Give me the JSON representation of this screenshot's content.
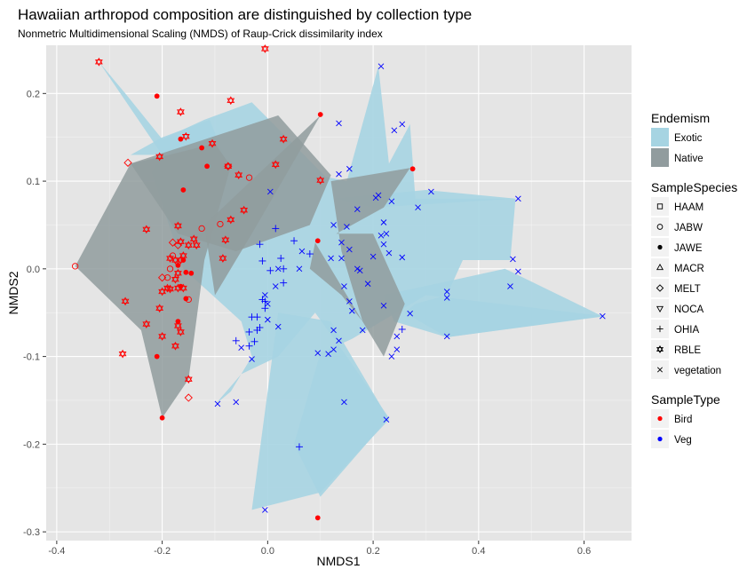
{
  "chart_data": {
    "type": "scatter",
    "title": "Hawaiian arthropod composition are distinguished by collection type",
    "subtitle": "Nonmetric Multidimensional Scaling (NMDS) of Raup-Crick dissimilarity index",
    "xlabel": "NMDS1",
    "ylabel": "NMDS2",
    "xlim": [
      -0.42,
      0.69
    ],
    "ylim": [
      -0.31,
      0.255
    ],
    "x_ticks": [
      -0.4,
      -0.2,
      0.0,
      0.2,
      0.4,
      0.6
    ],
    "x_tick_labels": [
      "-0.4",
      "-0.2",
      "0.0",
      "0.2",
      "0.4",
      "0.6"
    ],
    "y_ticks": [
      -0.3,
      -0.2,
      -0.1,
      0.0,
      0.1,
      0.2
    ],
    "y_tick_labels": [
      "-0.3",
      "-0.2",
      "-0.1",
      "0.0",
      "0.1",
      "0.2"
    ],
    "grid": true,
    "panel_background": "#e5e5e5",
    "legend_position": "right",
    "legends": [
      {
        "title": "Endemism",
        "kind": "fill",
        "entries": [
          {
            "label": "Exotic",
            "color": "#a6d4e2"
          },
          {
            "label": "Native",
            "color": "#919c9e"
          }
        ]
      },
      {
        "title": "SampleSpecies",
        "kind": "shape",
        "entries": [
          {
            "label": "HAAM",
            "shape": "square-open"
          },
          {
            "label": "JABW",
            "shape": "circle-open"
          },
          {
            "label": "JAWE",
            "shape": "circle-filled"
          },
          {
            "label": "MACR",
            "shape": "triangle-up-open"
          },
          {
            "label": "MELT",
            "shape": "diamond-open"
          },
          {
            "label": "NOCA",
            "shape": "triangle-down-open"
          },
          {
            "label": "OHIA",
            "shape": "plus"
          },
          {
            "label": "RBLE",
            "shape": "star-of-david"
          },
          {
            "label": "vegetation",
            "shape": "cross"
          }
        ]
      },
      {
        "title": "SampleType",
        "kind": "color",
        "entries": [
          {
            "label": "Bird",
            "color": "#ff0000"
          },
          {
            "label": "Veg",
            "color": "#0000ff"
          }
        ]
      }
    ],
    "hulls": [
      {
        "endemism": "Exotic",
        "points": [
          [
            -0.32,
            0.236
          ],
          [
            -0.27,
            0.2
          ],
          [
            -0.2,
            0.148
          ],
          [
            -0.12,
            0.17
          ],
          [
            -0.03,
            0.19
          ],
          [
            0.11,
            0.105
          ],
          [
            0.15,
            0.1
          ],
          [
            0.21,
            0.231
          ],
          [
            0.23,
            0.12
          ],
          [
            0.27,
            0.165
          ],
          [
            0.28,
            0.08
          ],
          [
            0.47,
            0.08
          ],
          [
            0.46,
            0.01
          ],
          [
            0.37,
            0.01
          ],
          [
            0.34,
            -0.03
          ],
          [
            0.28,
            -0.04
          ],
          [
            0.26,
            -0.05
          ],
          [
            0.34,
            -0.078
          ],
          [
            0.64,
            -0.054
          ],
          [
            0.3,
            -0.03
          ],
          [
            0.16,
            -0.08
          ],
          [
            0.1,
            -0.096
          ],
          [
            0.05,
            -0.2
          ],
          [
            0.1,
            -0.26
          ],
          [
            0.23,
            -0.17
          ],
          [
            0.15,
            -0.1
          ],
          [
            0.09,
            -0.05
          ],
          [
            0.02,
            -0.1
          ],
          [
            -0.05,
            -0.12
          ],
          [
            -0.1,
            -0.155
          ],
          [
            -0.07,
            -0.14
          ],
          [
            -0.03,
            -0.1
          ],
          [
            -0.05,
            -0.06
          ],
          [
            -0.16,
            -0.0
          ],
          [
            -0.22,
            0.11
          ],
          [
            -0.2,
            0.13
          ]
        ],
        "color": "#a6d4e2"
      },
      {
        "endemism": "Exotic",
        "points": [
          [
            -0.26,
            0.13
          ],
          [
            -0.2,
            0.15
          ],
          [
            -0.11,
            0.17
          ],
          [
            -0.07,
            0.11
          ],
          [
            -0.2,
            0.13
          ]
        ],
        "color": "#a6d4e2"
      },
      {
        "endemism": "Exotic",
        "points": [
          [
            0.3,
            0.09
          ],
          [
            0.47,
            0.08
          ],
          [
            0.2,
            0.07
          ],
          [
            0.13,
            0.08
          ]
        ],
        "color": "#a6d4e2"
      },
      {
        "endemism": "Exotic",
        "points": [
          [
            0.22,
            -0.03
          ],
          [
            0.45,
            0.0
          ],
          [
            0.635,
            -0.054
          ],
          [
            0.34,
            -0.078
          ],
          [
            0.24,
            -0.06
          ]
        ],
        "color": "#a6d4e2"
      },
      {
        "endemism": "Exotic",
        "points": [
          [
            -0.03,
            -0.275
          ],
          [
            0.1,
            -0.255
          ],
          [
            0.23,
            -0.172
          ],
          [
            0.12,
            -0.06
          ],
          [
            0.02,
            -0.05
          ]
        ],
        "color": "#a6d4e2"
      },
      {
        "endemism": "Native",
        "points": [
          [
            -0.365,
            0.003
          ],
          [
            -0.26,
            0.12
          ],
          [
            -0.2,
            0.128
          ],
          [
            -0.1,
            0.143
          ],
          [
            -0.07,
            0.117
          ],
          [
            -0.12,
            0.01
          ],
          [
            -0.15,
            -0.126
          ],
          [
            -0.2,
            -0.17
          ],
          [
            -0.24,
            -0.07
          ]
        ],
        "color": "#919c9e"
      },
      {
        "endemism": "Native",
        "points": [
          [
            -0.26,
            0.12
          ],
          [
            0.02,
            0.175
          ],
          [
            0.12,
            0.107
          ],
          [
            0.08,
            0.05
          ],
          [
            -0.06,
            0.02
          ],
          [
            -0.17,
            0.04
          ]
        ],
        "color": "#919c9e"
      },
      {
        "endemism": "Native",
        "points": [
          [
            -0.12,
            0.05
          ],
          [
            0.1,
            0.175
          ],
          [
            -0.03,
            0.04
          ],
          [
            -0.1,
            -0.03
          ]
        ],
        "color": "#919c9e"
      },
      {
        "endemism": "Native",
        "points": [
          [
            0.12,
            0.1
          ],
          [
            0.27,
            0.115
          ],
          [
            0.22,
            0.07
          ],
          [
            0.13,
            0.04
          ],
          [
            0.2,
            0.04
          ],
          [
            0.26,
            -0.04
          ],
          [
            0.22,
            -0.1
          ],
          [
            0.18,
            -0.06
          ],
          [
            0.14,
            0.02
          ]
        ],
        "color": "#919c9e"
      },
      {
        "endemism": "Native",
        "points": [
          [
            0.09,
            0.03
          ],
          [
            0.18,
            -0.06
          ],
          [
            0.14,
            -0.03
          ],
          [
            0.08,
            0.0
          ]
        ],
        "color": "#919c9e"
      }
    ],
    "series": [
      {
        "species": "JAWE",
        "type": "Bird",
        "shape": "circle-filled",
        "color": "#ff0000",
        "points": [
          [
            -0.21,
            0.197
          ],
          [
            0.1,
            0.176
          ],
          [
            -0.165,
            0.148
          ],
          [
            -0.125,
            0.138
          ],
          [
            -0.115,
            0.117
          ],
          [
            -0.16,
            0.09
          ],
          [
            0.275,
            0.114
          ],
          [
            0.095,
            0.032
          ],
          [
            -0.17,
            0.004
          ],
          [
            -0.16,
            0.01
          ],
          [
            -0.155,
            -0.004
          ],
          [
            -0.165,
            -0.02
          ],
          [
            -0.155,
            -0.034
          ],
          [
            -0.17,
            -0.06
          ],
          [
            -0.21,
            -0.1
          ],
          [
            -0.2,
            -0.17
          ],
          [
            0.095,
            -0.284
          ],
          [
            -0.145,
            -0.005
          ]
        ]
      },
      {
        "species": "JABW",
        "type": "Bird",
        "shape": "circle-open",
        "color": "#ff0000",
        "points": [
          [
            -0.365,
            0.003
          ],
          [
            -0.09,
            0.051
          ],
          [
            -0.125,
            0.046
          ],
          [
            -0.035,
            0.104
          ],
          [
            -0.15,
            -0.035
          ],
          [
            -0.185,
            0.0
          ],
          [
            -0.18,
            0.015
          ],
          [
            -0.19,
            -0.01
          ]
        ]
      },
      {
        "species": "MELT",
        "type": "Bird",
        "shape": "diamond-open",
        "color": "#ff0000",
        "points": [
          [
            -0.265,
            0.121
          ],
          [
            -0.075,
            0.117
          ],
          [
            -0.15,
            -0.147
          ],
          [
            -0.17,
            0.027
          ],
          [
            -0.2,
            -0.01
          ],
          [
            -0.18,
            0.03
          ]
        ]
      },
      {
        "species": "RBLE",
        "type": "Bird",
        "shape": "star-of-david",
        "color": "#ff0000",
        "points": [
          [
            -0.32,
            0.236
          ],
          [
            -0.005,
            0.251
          ],
          [
            -0.07,
            0.192
          ],
          [
            -0.165,
            0.179
          ],
          [
            -0.155,
            0.151
          ],
          [
            -0.105,
            0.143
          ],
          [
            0.03,
            0.148
          ],
          [
            -0.205,
            0.128
          ],
          [
            -0.075,
            0.117
          ],
          [
            -0.055,
            0.107
          ],
          [
            0.015,
            0.119
          ],
          [
            0.1,
            0.101
          ],
          [
            -0.045,
            0.067
          ],
          [
            -0.07,
            0.056
          ],
          [
            -0.23,
            0.045
          ],
          [
            -0.17,
            0.049
          ],
          [
            -0.135,
            0.027
          ],
          [
            -0.14,
            0.034
          ],
          [
            -0.165,
            0.031
          ],
          [
            -0.15,
            0.027
          ],
          [
            -0.16,
            0.015
          ],
          [
            -0.175,
            0.01
          ],
          [
            -0.185,
            0.012
          ],
          [
            -0.165,
            0.01
          ],
          [
            -0.17,
            -0.005
          ],
          [
            -0.175,
            -0.012
          ],
          [
            -0.185,
            -0.023
          ],
          [
            -0.2,
            -0.026
          ],
          [
            -0.17,
            -0.022
          ],
          [
            -0.16,
            -0.022
          ],
          [
            -0.19,
            -0.022
          ],
          [
            -0.27,
            -0.037
          ],
          [
            -0.205,
            -0.045
          ],
          [
            -0.17,
            -0.065
          ],
          [
            -0.165,
            -0.072
          ],
          [
            -0.2,
            -0.077
          ],
          [
            -0.23,
            -0.063
          ],
          [
            -0.175,
            -0.088
          ],
          [
            -0.275,
            -0.097
          ],
          [
            -0.15,
            -0.126
          ],
          [
            -0.085,
            0.012
          ],
          [
            -0.08,
            0.033
          ]
        ]
      },
      {
        "species": "OHIA",
        "type": "Veg",
        "shape": "plus",
        "color": "#0000ff",
        "points": [
          [
            0.015,
            0.046
          ],
          [
            0.05,
            0.032
          ],
          [
            -0.015,
            0.028
          ],
          [
            -0.01,
            0.009
          ],
          [
            0.025,
            0.012
          ],
          [
            0.005,
            -0.002
          ],
          [
            0.03,
            0.0
          ],
          [
            0.08,
            0.017
          ],
          [
            0.03,
            -0.016
          ],
          [
            -0.01,
            -0.035
          ],
          [
            -0.03,
            -0.055
          ],
          [
            -0.005,
            -0.037
          ],
          [
            -0.02,
            -0.07
          ],
          [
            -0.035,
            -0.072
          ],
          [
            -0.06,
            -0.082
          ],
          [
            -0.035,
            -0.088
          ],
          [
            -0.025,
            -0.083
          ],
          [
            -0.02,
            -0.055
          ],
          [
            0.06,
            -0.203
          ],
          [
            -0.015,
            -0.067
          ],
          [
            -0.005,
            -0.045
          ],
          [
            0.255,
            -0.069
          ]
        ]
      },
      {
        "species": "vegetation",
        "type": "Veg",
        "shape": "cross",
        "color": "#0000ff",
        "points": [
          [
            0.215,
            0.231
          ],
          [
            0.135,
            0.166
          ],
          [
            0.255,
            0.165
          ],
          [
            0.24,
            0.158
          ],
          [
            0.135,
            0.108
          ],
          [
            0.155,
            0.114
          ],
          [
            0.205,
            0.081
          ],
          [
            0.21,
            0.084
          ],
          [
            0.235,
            0.077
          ],
          [
            0.31,
            0.088
          ],
          [
            0.475,
            0.08
          ],
          [
            0.285,
            0.07
          ],
          [
            0.17,
            0.068
          ],
          [
            0.125,
            0.05
          ],
          [
            0.22,
            0.053
          ],
          [
            0.215,
            0.038
          ],
          [
            0.225,
            0.04
          ],
          [
            0.15,
            0.048
          ],
          [
            0.14,
            0.03
          ],
          [
            0.22,
            0.028
          ],
          [
            0.155,
            0.022
          ],
          [
            0.23,
            0.018
          ],
          [
            0.14,
            0.012
          ],
          [
            0.12,
            0.012
          ],
          [
            0.2,
            0.014
          ],
          [
            0.255,
            0.013
          ],
          [
            0.17,
            0.0
          ],
          [
            0.175,
            -0.002
          ],
          [
            0.19,
            -0.017
          ],
          [
            0.145,
            -0.02
          ],
          [
            0.155,
            -0.037
          ],
          [
            0.16,
            -0.048
          ],
          [
            0.22,
            -0.042
          ],
          [
            0.27,
            -0.051
          ],
          [
            0.34,
            -0.026
          ],
          [
            0.34,
            -0.033
          ],
          [
            0.465,
            0.011
          ],
          [
            0.475,
            -0.003
          ],
          [
            0.46,
            -0.02
          ],
          [
            0.635,
            -0.054
          ],
          [
            0.125,
            -0.07
          ],
          [
            0.18,
            -0.07
          ],
          [
            0.135,
            -0.082
          ],
          [
            0.245,
            -0.077
          ],
          [
            0.34,
            -0.077
          ],
          [
            0.095,
            -0.096
          ],
          [
            0.115,
            -0.097
          ],
          [
            0.125,
            -0.092
          ],
          [
            0.245,
            -0.092
          ],
          [
            0.235,
            -0.1
          ],
          [
            0.145,
            -0.152
          ],
          [
            0.225,
            -0.172
          ],
          [
            -0.095,
            -0.154
          ],
          [
            -0.06,
            -0.152
          ],
          [
            -0.03,
            -0.103
          ],
          [
            -0.05,
            -0.09
          ],
          [
            0.0,
            -0.058
          ],
          [
            0.02,
            -0.066
          ],
          [
            0.065,
            0.02
          ],
          [
            0.02,
            0.0
          ],
          [
            0.06,
            0.0
          ],
          [
            0.005,
            0.088
          ],
          [
            -0.005,
            -0.03
          ],
          [
            -0.005,
            -0.275
          ],
          [
            0.015,
            -0.02
          ],
          [
            0.0,
            -0.04
          ]
        ]
      }
    ]
  }
}
